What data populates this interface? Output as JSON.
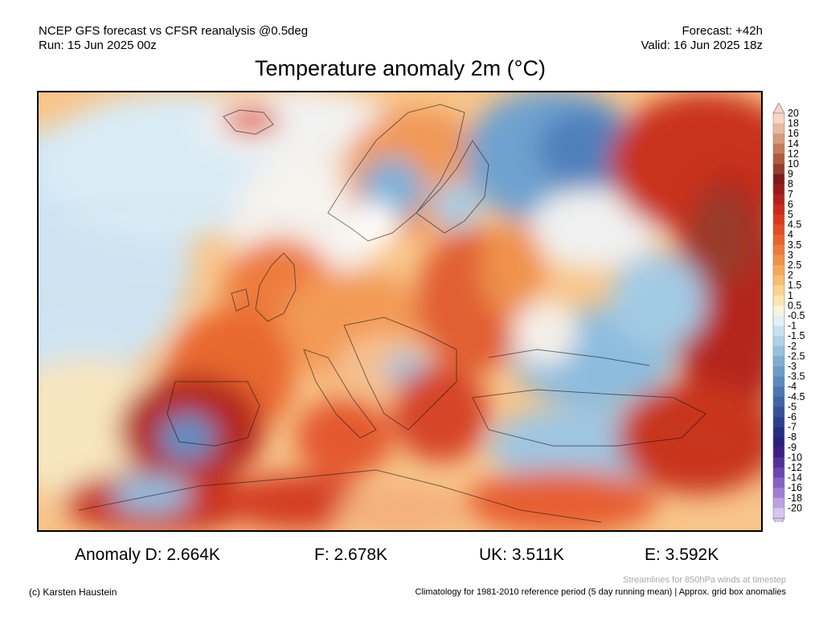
{
  "header": {
    "left_line1": "NCEP GFS forecast vs CFSR reanalysis @0.5deg",
    "left_line2": "Run: 15 Jun 2025 00z",
    "right_line1": "Forecast: +42h",
    "right_line2": "Valid: 16 Jun 2025 18z"
  },
  "title": "Temperature anomaly 2m (°C)",
  "colorbar": {
    "labels": [
      "20",
      "18",
      "16",
      "14",
      "12",
      "10",
      "9",
      "8",
      "7",
      "6",
      "5",
      "4.5",
      "4",
      "3.5",
      "3",
      "2.5",
      "2",
      "1.5",
      "1",
      "0.5",
      "-0.5",
      "-1",
      "-1.5",
      "-2",
      "-2.5",
      "-3",
      "-3.5",
      "-4",
      "-4.5",
      "-5",
      "-6",
      "-7",
      "-8",
      "-9",
      "-10",
      "-12",
      "-14",
      "-16",
      "-18",
      "-20"
    ],
    "colors": [
      "#f6d5c6",
      "#e8b9a0",
      "#d79a7c",
      "#c4795a",
      "#ad5a3f",
      "#943e2d",
      "#7d1a1a",
      "#981c1c",
      "#b4211e",
      "#c92b1f",
      "#d93a1f",
      "#e24d27",
      "#e8632f",
      "#ed7a3a",
      "#f19148",
      "#f5a85a",
      "#f8bf72",
      "#fad48e",
      "#fbe6b0",
      "#faf3dc",
      "#e3f0f7",
      "#c8e2f1",
      "#aed2e8",
      "#95c1de",
      "#7dafd3",
      "#6b9dc8",
      "#5a8abd",
      "#4c77b1",
      "#4064a6",
      "#36519a",
      "#2c3f8f",
      "#252e84",
      "#2a207c",
      "#3c2183",
      "#53309a",
      "#6d44b0",
      "#8760c2",
      "#a07ed3",
      "#bca2e2",
      "#d7c7ef"
    ],
    "top_arrow_color": "#f6d5c6",
    "bottom_arrow_color": "#d7c7ef"
  },
  "stats": {
    "d": "Anomaly D: 2.664K",
    "f": "F: 2.678K",
    "uk": "UK: 3.511K",
    "e": "E: 3.592K"
  },
  "footer": {
    "streamline_note": "Streamlines for 850hPa winds at timestep",
    "copyright": "(c) Karsten Haustein",
    "climatology": "Climatology for 1981-2010 reference period (5 day running mean) | Approx. grid box anomalies"
  }
}
